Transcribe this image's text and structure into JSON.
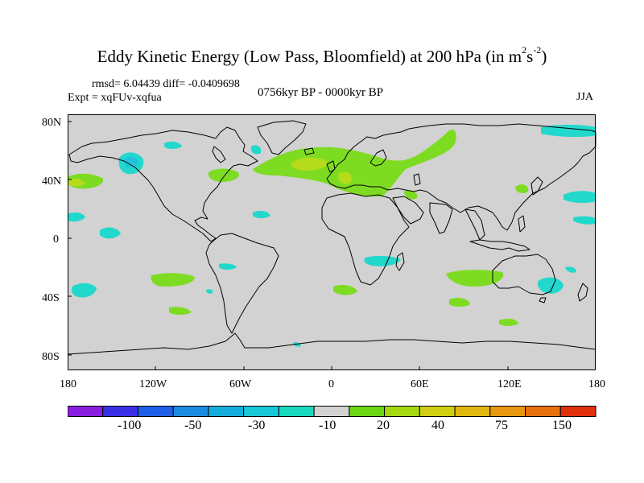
{
  "title": {
    "text": "Eddy Kinetic Energy (Low Pass, Bloomfield) at 200 hPa (in m",
    "exp1": "2",
    "mid": "s",
    "exp2": "-2",
    "close": ")"
  },
  "stats": "rmsd= 6.04439 diff= -0.0409698",
  "experiment": "Expt = xqFUv-xqfua",
  "period": "0756kyr BP - 0000kyr BP",
  "season": "JJA",
  "lat_ticks": [
    "80N",
    "40N",
    "0",
    "40S",
    "80S"
  ],
  "lon_ticks": [
    "180",
    "120W",
    "60W",
    "0",
    "60E",
    "120E",
    "180"
  ],
  "colorbar": {
    "colors": [
      "#8a1fe0",
      "#3b2fe6",
      "#1f5fe8",
      "#1a8ce0",
      "#15aedc",
      "#19c8d8",
      "#1ad8c0",
      "#d2d2d2",
      "#6ad614",
      "#a6d812",
      "#d0d012",
      "#e0b810",
      "#e89810",
      "#e8700e",
      "#e0300c"
    ],
    "labels": [
      "-100",
      "-50",
      "-30",
      "-10",
      "20",
      "40",
      "75",
      "150"
    ]
  },
  "colors": {
    "land": "#d2d2d2",
    "ocean": "#d2d2d2",
    "positive": "#7ddc22",
    "positive_strong": "#b4dc1a",
    "negative": "#22d8cc",
    "negative_strong": "#1fc4dc"
  }
}
